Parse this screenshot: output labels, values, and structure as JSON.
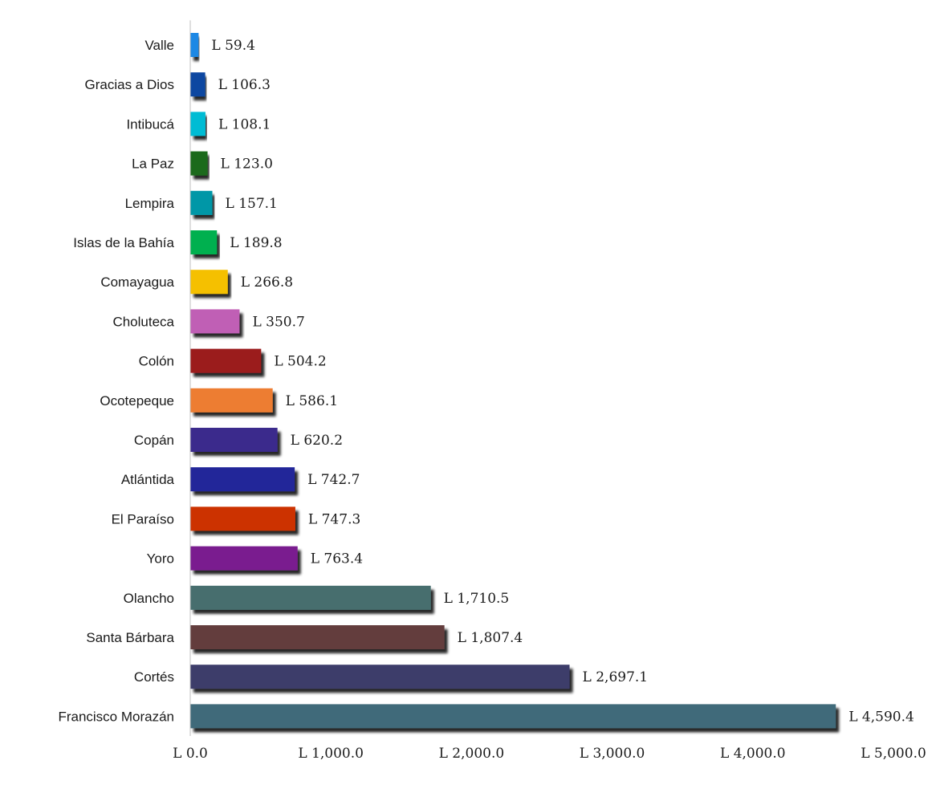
{
  "chart_data": {
    "type": "bar",
    "orientation": "horizontal",
    "title": "",
    "xlabel": "",
    "ylabel": "",
    "categories": [
      "Valle",
      "Gracias a Dios",
      "Intibucá",
      "La Paz",
      "Lempira",
      "Islas de la Bahía",
      "Comayagua",
      "Choluteca",
      "Colón",
      "Ocotepeque",
      "Copán",
      "Atlántida",
      "El Paraíso",
      "Yoro",
      "Olancho",
      "Santa Bárbara",
      "Cortés",
      "Francisco Morazán"
    ],
    "values": [
      59.4,
      106.3,
      108.1,
      123.0,
      157.1,
      189.8,
      266.8,
      350.7,
      504.2,
      586.1,
      620.2,
      742.7,
      747.3,
      763.4,
      1710.5,
      1807.4,
      2697.1,
      4590.4
    ],
    "value_labels": [
      "L 59.4",
      "L 106.3",
      "L 108.1",
      "L 123.0",
      "L 157.1",
      "L 189.8",
      "L 266.8",
      "L 350.7",
      "L 504.2",
      "L 586.1",
      "L 620.2",
      "L 742.7",
      "L 747.3",
      "L 763.4",
      "L 1,710.5",
      "L 1,807.4",
      "L 2,697.1",
      "L 4,590.4"
    ],
    "colors": [
      "#1e88e5",
      "#0d47a1",
      "#00bcd4",
      "#1b6b1b",
      "#0097a7",
      "#00b050",
      "#f5c000",
      "#c05fb5",
      "#9b1c1f",
      "#ed7d31",
      "#3a2a8c",
      "#222799",
      "#cc3300",
      "#7a1f8f",
      "#476e6e",
      "#633d3d",
      "#3c3c6b",
      "#416b7a"
    ],
    "xlim": [
      0,
      5000
    ],
    "x_ticks": [
      0,
      1000,
      2000,
      3000,
      4000,
      5000
    ],
    "x_tick_labels": [
      "L 0.0",
      "L 1,000.0",
      "L 2,000.0",
      "L 3,000.0",
      "L 4,000.0",
      "L 5,000.0"
    ],
    "grid": false,
    "legend": "none"
  }
}
